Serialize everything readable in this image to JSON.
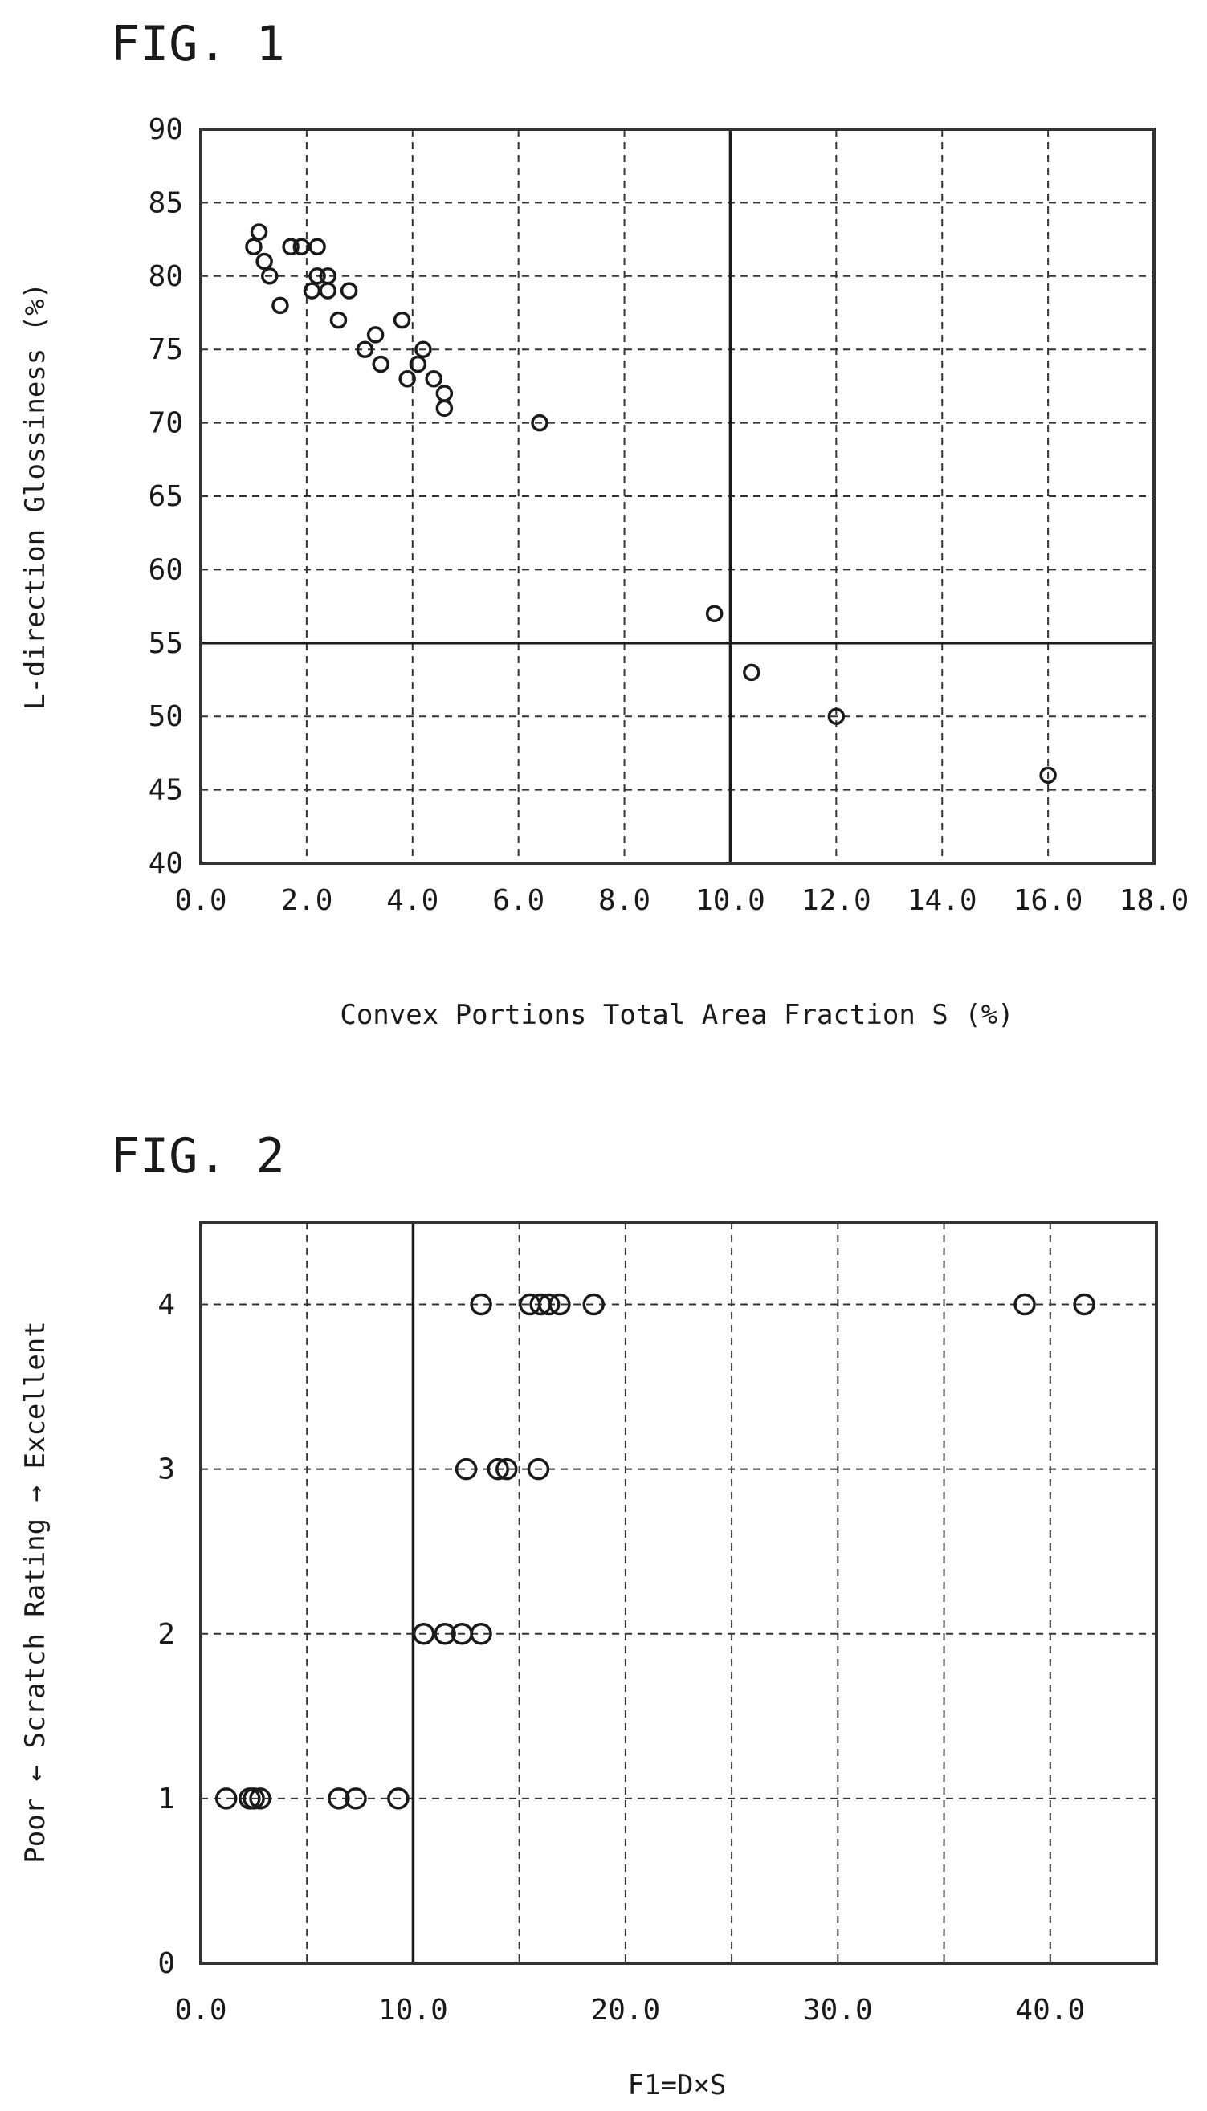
{
  "chart_data": [
    {
      "type": "scatter",
      "title": "FIG. 1",
      "xlabel": "Convex Portions Total Area Fraction S (%)",
      "ylabel": "L-direction Glossiness (%)",
      "xlim": [
        0,
        18
      ],
      "ylim": [
        40,
        90
      ],
      "x_ticks": [
        "0.0",
        "2.0",
        "4.0",
        "6.0",
        "8.0",
        "10.0",
        "12.0",
        "14.0",
        "16.0",
        "18.0"
      ],
      "y_ticks": [
        "90",
        "85",
        "80",
        "75",
        "70",
        "65",
        "60",
        "55",
        "50",
        "45",
        "40"
      ],
      "grid": true,
      "reference_lines": {
        "x": 10,
        "y": 55
      },
      "points": [
        {
          "x": 1.0,
          "y": 82
        },
        {
          "x": 1.1,
          "y": 83
        },
        {
          "x": 1.2,
          "y": 81
        },
        {
          "x": 1.3,
          "y": 80
        },
        {
          "x": 1.5,
          "y": 78
        },
        {
          "x": 1.7,
          "y": 82
        },
        {
          "x": 1.9,
          "y": 82
        },
        {
          "x": 2.1,
          "y": 79
        },
        {
          "x": 2.2,
          "y": 82
        },
        {
          "x": 2.2,
          "y": 80
        },
        {
          "x": 2.4,
          "y": 79
        },
        {
          "x": 2.4,
          "y": 80
        },
        {
          "x": 2.6,
          "y": 77
        },
        {
          "x": 2.8,
          "y": 79
        },
        {
          "x": 3.1,
          "y": 75
        },
        {
          "x": 3.3,
          "y": 76
        },
        {
          "x": 3.4,
          "y": 74
        },
        {
          "x": 3.8,
          "y": 77
        },
        {
          "x": 3.9,
          "y": 73
        },
        {
          "x": 4.1,
          "y": 74
        },
        {
          "x": 4.2,
          "y": 75
        },
        {
          "x": 4.4,
          "y": 73
        },
        {
          "x": 4.6,
          "y": 72
        },
        {
          "x": 4.6,
          "y": 71
        },
        {
          "x": 6.4,
          "y": 70
        },
        {
          "x": 9.7,
          "y": 57
        },
        {
          "x": 10.4,
          "y": 53
        },
        {
          "x": 12.0,
          "y": 50
        },
        {
          "x": 16.0,
          "y": 46
        }
      ]
    },
    {
      "type": "scatter",
      "title": "FIG. 2",
      "xlabel": "F1=D×S",
      "ylabel": "Poor ← Scratch Rating → Excellent",
      "xlim": [
        0,
        45
      ],
      "ylim": [
        0,
        4.5
      ],
      "x_ticks": [
        "0.0",
        "10.0",
        "20.0",
        "30.0",
        "40.0"
      ],
      "x_tick_values": [
        0,
        10,
        20,
        30,
        40
      ],
      "y_ticks": [
        "4",
        "3",
        "2",
        "1",
        "0"
      ],
      "y_tick_values": [
        4,
        3,
        2,
        1,
        0
      ],
      "grid": true,
      "reference_lines": {
        "x": 10
      },
      "points": [
        {
          "x": 1.2,
          "y": 1
        },
        {
          "x": 2.3,
          "y": 1
        },
        {
          "x": 2.5,
          "y": 1
        },
        {
          "x": 2.8,
          "y": 1
        },
        {
          "x": 6.5,
          "y": 1
        },
        {
          "x": 7.3,
          "y": 1
        },
        {
          "x": 9.3,
          "y": 1
        },
        {
          "x": 10.5,
          "y": 2
        },
        {
          "x": 11.5,
          "y": 2
        },
        {
          "x": 12.3,
          "y": 2
        },
        {
          "x": 13.2,
          "y": 2
        },
        {
          "x": 12.5,
          "y": 3
        },
        {
          "x": 14.0,
          "y": 3
        },
        {
          "x": 14.4,
          "y": 3
        },
        {
          "x": 15.9,
          "y": 3
        },
        {
          "x": 13.2,
          "y": 4
        },
        {
          "x": 15.5,
          "y": 4
        },
        {
          "x": 16.0,
          "y": 4
        },
        {
          "x": 16.4,
          "y": 4
        },
        {
          "x": 16.9,
          "y": 4
        },
        {
          "x": 18.5,
          "y": 4
        },
        {
          "x": 38.8,
          "y": 4
        },
        {
          "x": 41.6,
          "y": 4
        }
      ]
    }
  ]
}
